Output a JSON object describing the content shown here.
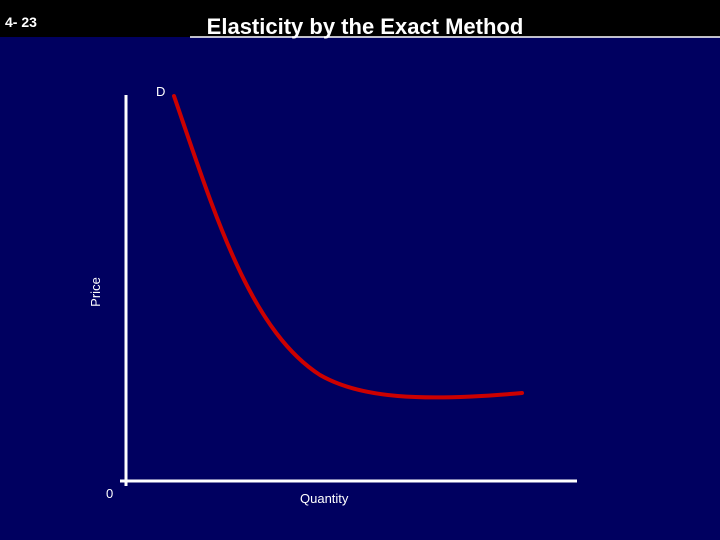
{
  "header": {
    "slide_number": "4- 23",
    "title": "Elasticity by the Exact Method"
  },
  "diagram": {
    "curve_label": "D",
    "y_axis_label": "Price",
    "x_axis_label": "Quantity",
    "origin_label": "0"
  }
}
